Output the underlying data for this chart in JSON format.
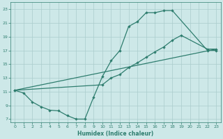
{
  "line1_x": [
    0,
    1,
    2,
    3,
    4,
    5,
    6,
    7,
    8,
    9,
    10,
    11,
    12,
    13,
    14,
    15,
    16,
    17,
    18,
    22,
    23
  ],
  "line1_y": [
    11.2,
    10.8,
    9.5,
    8.8,
    8.3,
    8.2,
    7.5,
    7.0,
    7.0,
    10.2,
    13.2,
    15.5,
    17.0,
    20.5,
    21.2,
    22.5,
    22.5,
    22.8,
    22.8,
    17.0,
    17.0
  ],
  "line2_x": [
    0,
    10,
    11,
    12,
    13,
    14,
    15,
    16,
    17,
    18,
    19,
    22,
    23
  ],
  "line2_y": [
    11.2,
    12.0,
    13.0,
    13.5,
    14.5,
    15.2,
    16.0,
    16.8,
    17.5,
    18.5,
    19.2,
    17.2,
    17.2
  ],
  "line3_x": [
    0,
    23
  ],
  "line3_y": [
    11.2,
    17.2
  ],
  "background_color": "#cde8e8",
  "line_color": "#2e7d6e",
  "grid_color": "#aacccc",
  "xlabel": "Humidex (Indice chaleur)",
  "xlim": [
    -0.5,
    23.5
  ],
  "ylim": [
    6.5,
    24.0
  ],
  "xticks": [
    0,
    1,
    2,
    3,
    4,
    5,
    6,
    7,
    8,
    9,
    10,
    11,
    12,
    13,
    14,
    15,
    16,
    17,
    18,
    19,
    20,
    21,
    22,
    23
  ],
  "yticks": [
    7,
    9,
    11,
    13,
    15,
    17,
    19,
    21,
    23
  ]
}
